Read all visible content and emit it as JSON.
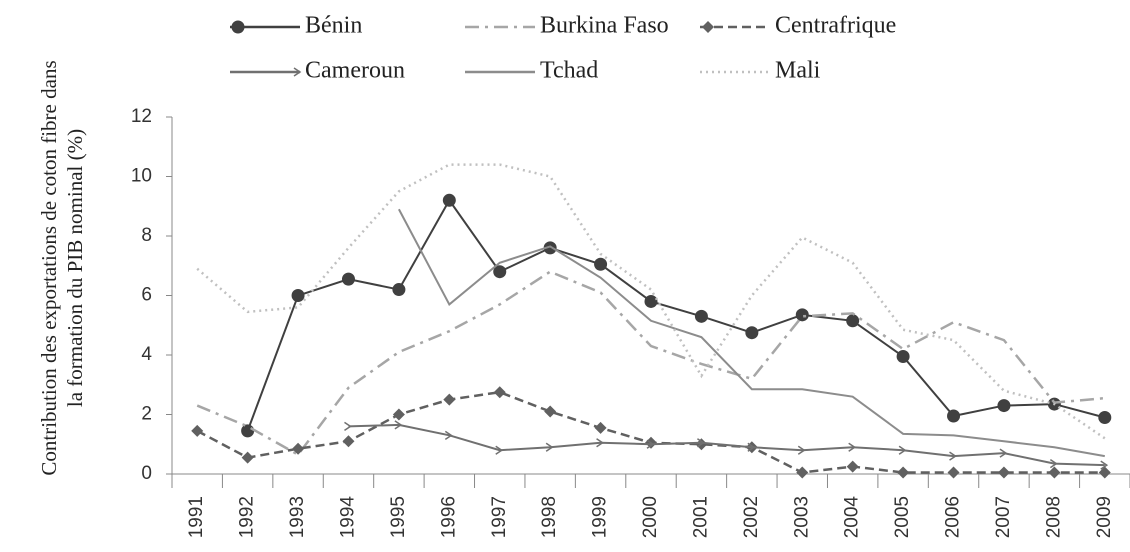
{
  "chart_data": {
    "type": "line",
    "y_label": "Contribution des exportations de coton fibre dans la formation du PIB nominal (%)",
    "categories": [
      "1991",
      "1992",
      "1993",
      "1994",
      "1995",
      "1996",
      "1997",
      "1998",
      "1999",
      "2000",
      "2001",
      "2002",
      "2003",
      "2004",
      "2005",
      "2006",
      "2007",
      "2008",
      "2009"
    ],
    "ylim": [
      0,
      12
    ],
    "yticks": [
      0,
      2,
      4,
      6,
      8,
      10,
      12
    ],
    "grid": false,
    "series": [
      {
        "name": "Bénin",
        "color": "#404040",
        "dash": "none",
        "marker": "circle",
        "values": [
          null,
          1.45,
          6.0,
          6.55,
          6.2,
          9.2,
          6.8,
          7.6,
          7.05,
          5.8,
          5.3,
          4.75,
          5.35,
          5.15,
          3.95,
          1.95,
          2.3,
          2.35,
          1.9
        ]
      },
      {
        "name": "Burkina Faso",
        "color": "#a6a6a6",
        "dash": "14 6 3 6",
        "marker": "none",
        "values": [
          2.3,
          1.6,
          0.65,
          2.9,
          4.1,
          4.8,
          5.7,
          6.8,
          6.1,
          4.3,
          3.7,
          3.2,
          5.3,
          5.4,
          4.2,
          5.1,
          4.5,
          2.4,
          2.55
        ]
      },
      {
        "name": "Centrafrique",
        "color": "#606060",
        "dash": "9 5",
        "marker": "diamond",
        "values": [
          1.45,
          0.55,
          0.85,
          1.1,
          2.0,
          2.5,
          2.75,
          2.1,
          1.55,
          1.05,
          1.0,
          0.9,
          0.05,
          0.25,
          0.05,
          0.05,
          0.05,
          0.05,
          0.05
        ]
      },
      {
        "name": "Cameroun",
        "color": "#707070",
        "dash": "none",
        "marker": "arrow",
        "values": [
          null,
          null,
          null,
          1.6,
          1.65,
          1.3,
          0.8,
          0.9,
          1.05,
          1.0,
          1.05,
          0.9,
          0.8,
          0.9,
          0.8,
          0.6,
          0.7,
          0.35,
          0.3
        ]
      },
      {
        "name": "Tchad",
        "color": "#8c8c8c",
        "dash": "none",
        "marker": "none",
        "values": [
          null,
          null,
          null,
          null,
          8.9,
          5.7,
          7.1,
          7.65,
          6.6,
          5.15,
          4.6,
          2.85,
          2.85,
          2.6,
          1.35,
          1.3,
          1.1,
          0.9,
          0.6
        ]
      },
      {
        "name": "Mali",
        "color": "#c0c0c0",
        "dash": "2 4",
        "marker": "none",
        "values": [
          6.9,
          5.45,
          5.6,
          7.6,
          9.5,
          10.4,
          10.4,
          10.0,
          7.4,
          6.2,
          3.3,
          6.0,
          7.95,
          7.1,
          4.85,
          4.5,
          2.8,
          2.35,
          1.2
        ]
      }
    ]
  }
}
